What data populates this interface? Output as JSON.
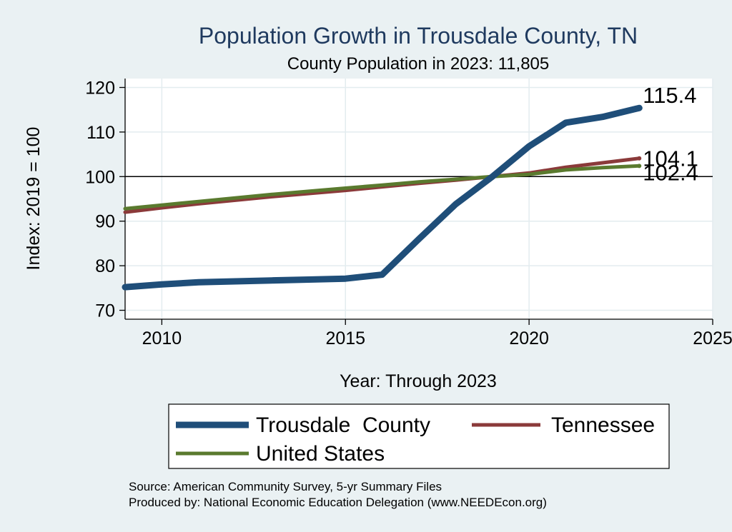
{
  "chart_data": {
    "type": "line",
    "title": "Population Growth in Trousdale County, TN",
    "subtitle": "County Population in 2023: 11,805",
    "xlabel": "Year: Through 2023",
    "ylabel": "Index: 2019 = 100",
    "xlim": [
      2009,
      2025
    ],
    "ylim": [
      68,
      122
    ],
    "xticks": [
      2010,
      2015,
      2020,
      2025
    ],
    "yticks": [
      70,
      80,
      90,
      100,
      110,
      120
    ],
    "reference_line": 100,
    "grid": true,
    "legend_position": "bottom",
    "series": [
      {
        "name": "Trousdale  County",
        "color": "#1f4e79",
        "x": [
          2009,
          2010,
          2011,
          2012,
          2013,
          2014,
          2015,
          2016,
          2017,
          2018,
          2019,
          2020,
          2021,
          2022,
          2023
        ],
        "values": [
          75.2,
          75.8,
          76.3,
          76.5,
          76.7,
          76.9,
          77.1,
          78.0,
          86.0,
          93.8,
          100.0,
          106.8,
          112.1,
          113.4,
          115.4
        ],
        "end_label": "115.4"
      },
      {
        "name": "Tennessee",
        "color": "#8b3a3a",
        "x": [
          2009,
          2010,
          2011,
          2012,
          2013,
          2014,
          2015,
          2016,
          2017,
          2018,
          2019,
          2020,
          2021,
          2022,
          2023
        ],
        "values": [
          92.0,
          93.0,
          93.9,
          94.7,
          95.5,
          96.2,
          96.9,
          97.7,
          98.5,
          99.2,
          100.0,
          100.8,
          102.1,
          103.1,
          104.1
        ],
        "end_label": "104.1"
      },
      {
        "name": "United States",
        "color": "#5a7a2e",
        "x": [
          2009,
          2010,
          2011,
          2012,
          2013,
          2014,
          2015,
          2016,
          2017,
          2018,
          2019,
          2020,
          2021,
          2022,
          2023
        ],
        "values": [
          92.8,
          93.6,
          94.4,
          95.2,
          96.0,
          96.7,
          97.4,
          98.1,
          98.8,
          99.4,
          100.0,
          100.5,
          101.5,
          102.0,
          102.4
        ],
        "end_label": "102.4"
      }
    ]
  },
  "notes": {
    "source": "Source: American Community Survey, 5-yr Summary Files",
    "produced": "Produced by: National Economic Education Delegation (www.NEEDEcon.org)"
  }
}
